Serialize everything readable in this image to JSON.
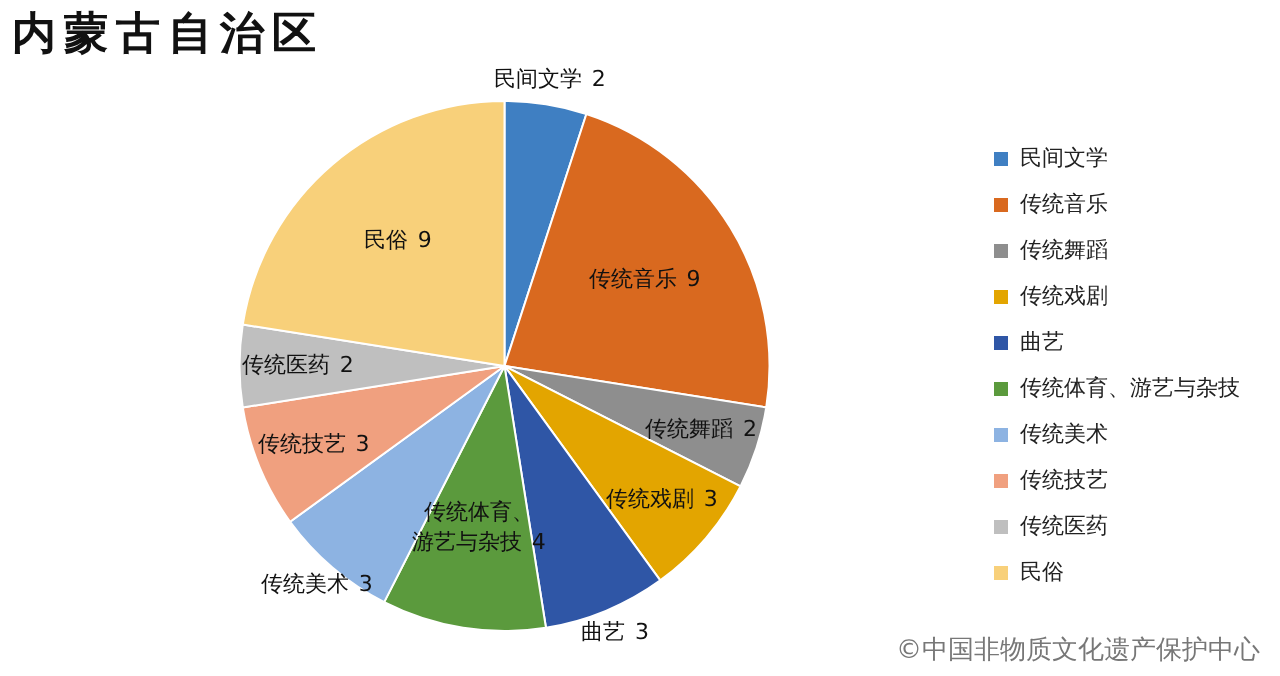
{
  "chart_data": {
    "type": "pie",
    "title": "内蒙古自治区",
    "categories": [
      "民间文学",
      "传统音乐",
      "传统舞蹈",
      "传统戏剧",
      "曲艺",
      "传统体育、游艺与杂技",
      "传统美术",
      "传统技艺",
      "传统医药",
      "民俗"
    ],
    "values": [
      2,
      9,
      2,
      3,
      3,
      4,
      3,
      3,
      2,
      9
    ],
    "colors": [
      "#3f7fc2",
      "#d9691f",
      "#8e8e8e",
      "#e3a500",
      "#2f56a6",
      "#5b9a3d",
      "#8db3e2",
      "#f0a07f",
      "#bfbfbf",
      "#f8d07a"
    ],
    "data_labels": true,
    "legend": "right",
    "annotations": [
      "©中国非物质文化遗产保护中心"
    ]
  }
}
